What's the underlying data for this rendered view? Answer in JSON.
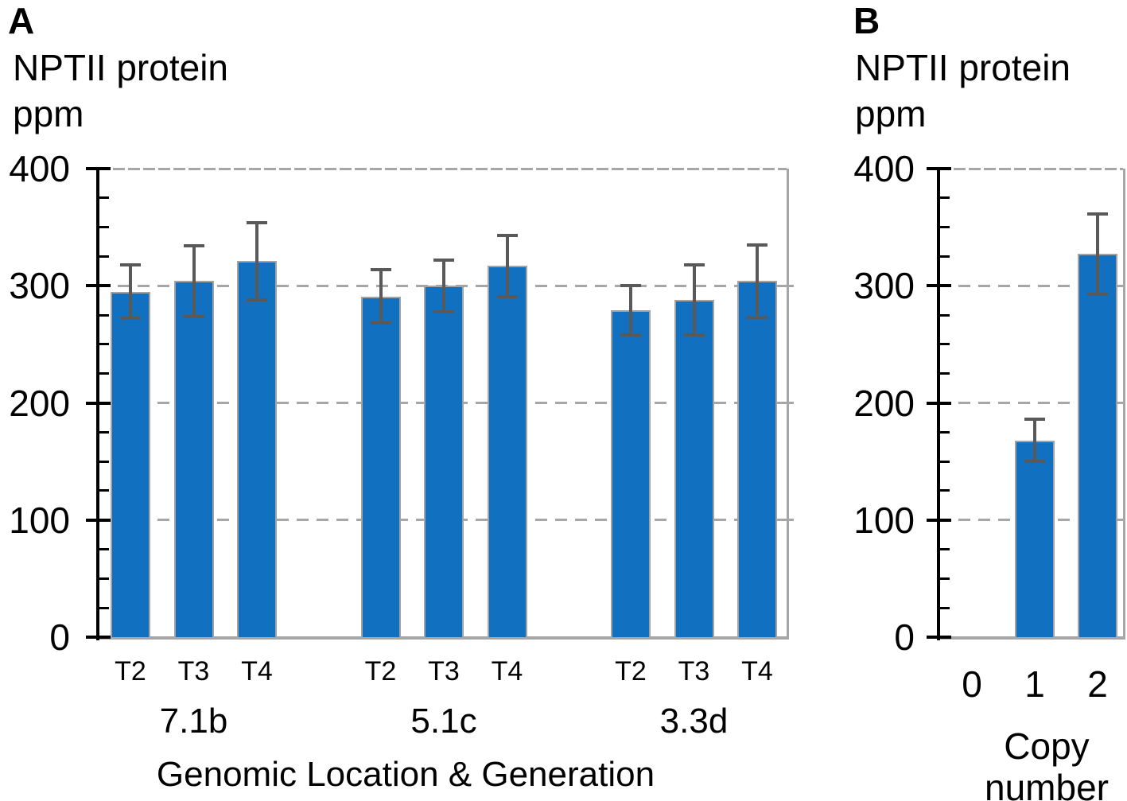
{
  "figure": {
    "panels": [
      {
        "letter": "A",
        "y_title_lines": [
          "NPTII protein",
          "ppm"
        ],
        "x_title": "Genomic Location & Generation"
      },
      {
        "letter": "B",
        "y_title_lines": [
          "NPTII protein",
          "ppm"
        ],
        "x_title_lines": [
          "Copy",
          "number"
        ]
      }
    ]
  },
  "chart_data": [
    {
      "id": "A",
      "type": "bar",
      "ylabel": "NPTII protein ppm",
      "xlabel": "Genomic Location & Generation",
      "ylim": [
        0,
        400
      ],
      "yticks": [
        400,
        300,
        200,
        100,
        0
      ],
      "minor_tick_step": 25,
      "grid": "horizontal dashed at 100, 200, 300, 400",
      "legend": "none",
      "groups": [
        {
          "label": "7.1b",
          "categories": [
            "T2",
            "T3",
            "T4"
          ],
          "values": [
            295,
            304,
            321
          ],
          "errors": [
            23,
            30,
            33
          ]
        },
        {
          "label": "5.1c",
          "categories": [
            "T2",
            "T3",
            "T4"
          ],
          "values": [
            291,
            300,
            317
          ],
          "errors": [
            23,
            22,
            26
          ]
        },
        {
          "label": "3.3d",
          "categories": [
            "T2",
            "T3",
            "T4"
          ],
          "values": [
            279,
            288,
            304
          ],
          "errors": [
            21,
            30,
            31
          ]
        }
      ]
    },
    {
      "id": "B",
      "type": "bar",
      "ylabel": "NPTII protein ppm",
      "xlabel": "Copy number",
      "ylim": [
        0,
        400
      ],
      "yticks": [
        400,
        300,
        200,
        100,
        0
      ],
      "minor_tick_step": 25,
      "grid": "horizontal dashed at 100, 200, 300, 400",
      "legend": "none",
      "categories": [
        "0",
        "1",
        "2"
      ],
      "values": [
        0,
        168,
        327
      ],
      "errors": [
        0,
        18,
        34
      ]
    }
  ],
  "colors": {
    "bar_fill": "#1170C0",
    "bar_border": "#A3A3A3",
    "error_bar": "#595959",
    "gridline": "#A6A6A6",
    "axis": "#000000",
    "text": "#000000",
    "background": "#FFFFFF"
  }
}
